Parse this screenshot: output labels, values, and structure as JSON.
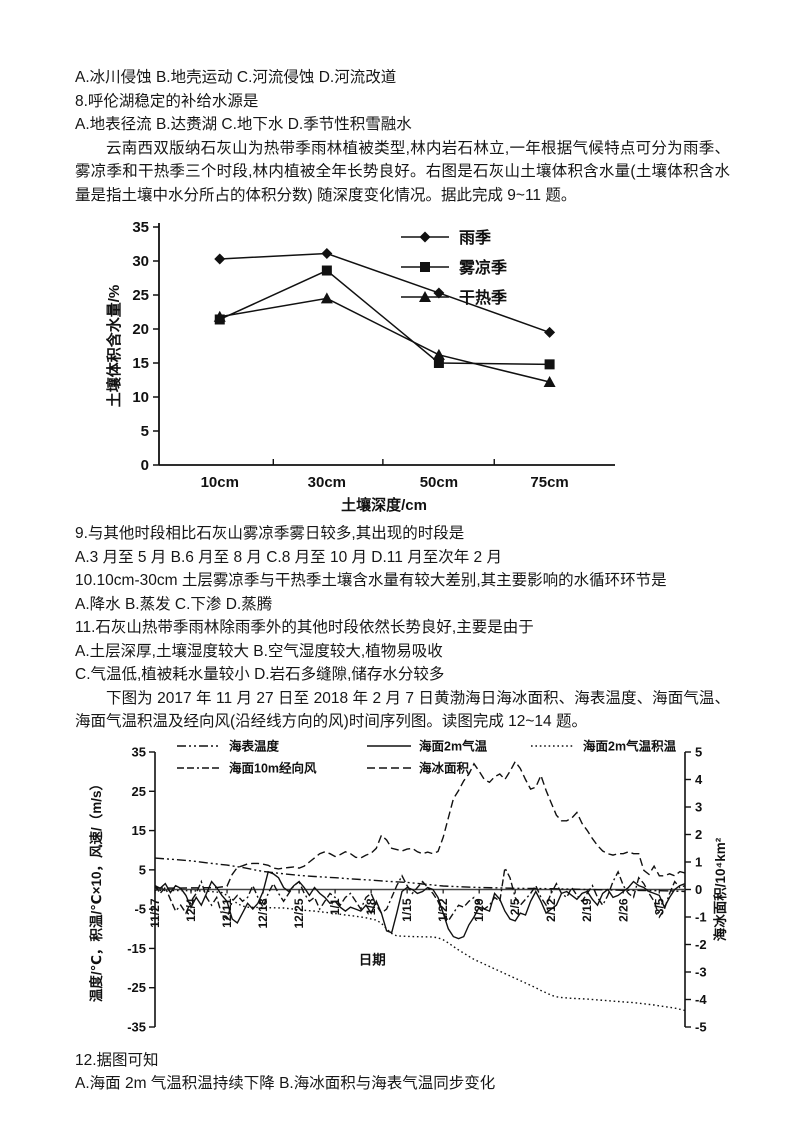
{
  "page": {
    "lines": {
      "q7_options": "A.冰川侵蚀 B.地壳运动 C.河流侵蚀 D.河流改道",
      "q8": "8.呼伦湖稳定的补给水源是",
      "q8_options": "A.地表径流 B.达赉湖 C.地下水 D.季节性积雪融水",
      "intro1": "云南西双版纳石灰山为热带季雨林植被类型,林内岩石林立,一年根据气候特点可分为雨季、雾凉季和干热季三个时段,林内植被全年长势良好。右图是石灰山土壤体积含水量(土壤体积含水量是指土壤中水分所占的体积分数) 随深度变化情况。据此完成 9~11 题。",
      "q9": "9.与其他时段相比石灰山雾凉季雾日较多,其出现的时段是",
      "q9_options": "A.3 月至 5 月 B.6 月至 8 月 C.8 月至 10 月 D.11 月至次年 2 月",
      "q10": "10.10cm-30cm 土层雾凉季与干热季土壤含水量有较大差别,其主要影响的水循环环节是",
      "q10_options": "A.降水 B.蒸发 C.下渗 D.蒸腾",
      "q11": "11.石灰山热带季雨林除雨季外的其他时段依然长势良好,主要是由于",
      "q11_options_ab": "A.土层深厚,土壤湿度较大 B.空气湿度较大,植物易吸收",
      "q11_options_cd": "C.气温低,植被耗水量较小 D.岩石多缝隙,储存水分较多",
      "intro2": "下图为 2017 年 11 月 27 日至 2018 年 2 月 7 日黄渤海日海冰面积、海表温度、海面气温、海面气温积温及经向风(沿经线方向的风)时间序列图。读图完成 12~14 题。",
      "q12": "12.据图可知",
      "q12_options_ab": "A.海面 2m 气温积温持续下降 B.海冰面积与海表气温同步变化"
    }
  },
  "chart_data": [
    {
      "id": "soil-moisture",
      "type": "line",
      "title": "",
      "xlabel": "土壤深度/cm",
      "ylabel": "土壤体积含水量/%",
      "categories": [
        "10cm",
        "30cm",
        "50cm",
        "75cm"
      ],
      "ylim": [
        0,
        35
      ],
      "ytick_step": 5,
      "grid": false,
      "legend_position": "top-right",
      "line_color": "#111111",
      "series": [
        {
          "name": "雨季",
          "marker": "diamond",
          "values": [
            30.3,
            31.1,
            25.3,
            19.5
          ]
        },
        {
          "name": "雾凉季",
          "marker": "square",
          "values": [
            21.4,
            28.6,
            15.0,
            14.8
          ]
        },
        {
          "name": "干热季",
          "marker": "triangle",
          "values": [
            21.8,
            24.5,
            16.2,
            12.2
          ]
        }
      ]
    },
    {
      "id": "sea-ice-timeseries",
      "type": "line",
      "title": "",
      "xlabel": "日期",
      "ylabel_left": "温度/℃，积温/℃×10，风速/（m/s）",
      "ylabel_right": "海冰面积/10⁴km²",
      "ylim_left": [
        -35,
        35
      ],
      "ylim_right": [
        -5,
        5
      ],
      "ytick_step_left": 10,
      "ytick_step_right": 1,
      "right_to_left_scale": 7,
      "x_domain_days": [
        0,
        103
      ],
      "xtick_days": [
        0,
        7,
        14,
        21,
        28,
        35,
        42,
        49,
        56,
        63,
        70,
        77,
        84,
        91,
        98
      ],
      "xtick_labels": [
        "11/27",
        "12/4",
        "12/11",
        "12/18",
        "12/25",
        "1/1",
        "1/8",
        "1/15",
        "1/22",
        "1/29",
        "2/5",
        "2/12",
        "2/19",
        "2/26",
        "3/5"
      ],
      "legend_rows": [
        [
          0,
          1,
          2
        ],
        [
          3,
          4
        ]
      ],
      "line_color": "#111111",
      "series": [
        {
          "name": "海表温度",
          "style": "dash-dot",
          "axis": "left",
          "points": [
            [
              0,
              8
            ],
            [
              4,
              7.6
            ],
            [
              7,
              7.3
            ],
            [
              10,
              6.8
            ],
            [
              14,
              6.2
            ],
            [
              17,
              5.6
            ],
            [
              19,
              5.1
            ],
            [
              21,
              4.6
            ],
            [
              23,
              4.3
            ],
            [
              25,
              4.0
            ],
            [
              28,
              3.6
            ],
            [
              31,
              3.3
            ],
            [
              35,
              3.0
            ],
            [
              38,
              2.7
            ],
            [
              42,
              2.4
            ],
            [
              45,
              2.1
            ],
            [
              49,
              1.8
            ],
            [
              52,
              1.4
            ],
            [
              56,
              0.9
            ],
            [
              59,
              0.7
            ],
            [
              63,
              0.5
            ],
            [
              67,
              0.4
            ],
            [
              70,
              0.3
            ],
            [
              74,
              0.25
            ],
            [
              77,
              0.2
            ],
            [
              81,
              0.1
            ],
            [
              84,
              0.0
            ],
            [
              88,
              -0.1
            ],
            [
              91,
              -0.2
            ],
            [
              95,
              -0.25
            ],
            [
              98,
              -0.3
            ],
            [
              101,
              -0.4
            ],
            [
              103,
              -0.5
            ]
          ]
        },
        {
          "name": "海面2m气温",
          "style": "solid",
          "axis": "left",
          "start_day": 0,
          "step": 1,
          "values": [
            1,
            0.3,
            1.5,
            -0.8,
            1,
            0.3,
            -1.5,
            -4.5,
            -2,
            -4,
            -1,
            2,
            0.5,
            -1.5,
            -3,
            -7.5,
            -8.5,
            -6,
            -3.5,
            -5,
            -3.5,
            -0.5,
            4.5,
            4,
            3,
            0.5,
            -0.5,
            1,
            2,
            0.5,
            -1.5,
            0.5,
            -1,
            -2,
            -3.5,
            -3,
            -4.5,
            -5.5,
            -4.5,
            -5,
            -5.5,
            -4,
            -6,
            -3,
            -6,
            -10.5,
            -11,
            -6,
            -0.5,
            0.5,
            0,
            -1,
            -0.5,
            0.5,
            0,
            -2,
            -6,
            -10,
            -12,
            -12.5,
            -12,
            -9,
            -7,
            -4.5,
            -5,
            -5.5,
            -1,
            -2.5,
            -5.5,
            -7.5,
            -8,
            -6,
            -6.5,
            -3,
            -0.5,
            -3,
            -6,
            -5,
            -4,
            -1,
            -0.5,
            -1.5,
            -2.5,
            -1,
            -0.5,
            -2.5,
            -4,
            -1,
            0,
            -2,
            -1.5,
            -0.5,
            0.5,
            2,
            1,
            0.5,
            -0.5,
            -1,
            -1.5,
            -4.5,
            -2,
            0,
            1,
            1.5
          ]
        },
        {
          "name": "海面2m气温积温",
          "style": "dotted",
          "axis": "left",
          "points": [
            [
              0,
              -0.2
            ],
            [
              6,
              -0.3
            ],
            [
              10,
              -0.4
            ],
            [
              13,
              -0.8
            ],
            [
              14,
              -1.5
            ],
            [
              15,
              -2.5
            ],
            [
              16,
              -3.6
            ],
            [
              17,
              -4.2
            ],
            [
              18,
              -4.5
            ],
            [
              21,
              -4.6
            ],
            [
              25,
              -4.7
            ],
            [
              27,
              -5.0
            ],
            [
              28,
              -5.2
            ],
            [
              31,
              -5.5
            ],
            [
              33,
              -5.8
            ],
            [
              35,
              -6.1
            ],
            [
              37,
              -6.5
            ],
            [
              39,
              -6.8
            ],
            [
              41,
              -7.2
            ],
            [
              43,
              -7.8
            ],
            [
              44,
              -8.6
            ],
            [
              45,
              -10.0
            ],
            [
              46,
              -11.2
            ],
            [
              47,
              -11.8
            ],
            [
              50,
              -12.0
            ],
            [
              54,
              -12.1
            ],
            [
              55,
              -12.3
            ],
            [
              56,
              -12.8
            ],
            [
              57,
              -13.6
            ],
            [
              58,
              -14.5
            ],
            [
              59,
              -15.4
            ],
            [
              60,
              -16.2
            ],
            [
              61,
              -17.0
            ],
            [
              62,
              -17.8
            ],
            [
              63,
              -18.4
            ],
            [
              64,
              -19.0
            ],
            [
              65,
              -19.6
            ],
            [
              66,
              -20.2
            ],
            [
              67,
              -20.8
            ],
            [
              68,
              -21.4
            ],
            [
              69,
              -22.0
            ],
            [
              70,
              -22.6
            ],
            [
              71,
              -23.2
            ],
            [
              72,
              -23.8
            ],
            [
              73,
              -24.4
            ],
            [
              74,
              -25.0
            ],
            [
              75,
              -25.7
            ],
            [
              76,
              -26.3
            ],
            [
              77,
              -26.9
            ],
            [
              78,
              -27.3
            ],
            [
              79,
              -27.5
            ],
            [
              81,
              -27.7
            ],
            [
              84,
              -27.9
            ],
            [
              86,
              -28.1
            ],
            [
              88,
              -28.3
            ],
            [
              91,
              -28.6
            ],
            [
              93,
              -28.8
            ],
            [
              95,
              -29.1
            ],
            [
              97,
              -29.4
            ],
            [
              99,
              -29.8
            ],
            [
              101,
              -30.2
            ],
            [
              103,
              -30.8
            ]
          ]
        },
        {
          "name": "海面10m经向风",
          "style": "dash-dash-dot",
          "axis": "left",
          "start_day": 0,
          "step": 1,
          "values": [
            1,
            -1,
            0.5,
            -2.5,
            -5.5,
            -4,
            -6,
            -3,
            -1,
            2,
            -2,
            -4,
            -2,
            -6.5,
            -7.5,
            -3,
            -1.5,
            -3,
            -2,
            1,
            -2,
            -4.5,
            -1,
            1.5,
            -1,
            -3,
            -1,
            1,
            2,
            -1,
            -3,
            -2,
            -5,
            -3,
            -1,
            -2,
            -4,
            -2,
            -1,
            -3,
            -5,
            -2,
            -1,
            -4,
            -6,
            -5,
            -2,
            1,
            3.5,
            1,
            -1,
            0.5,
            2,
            0.5,
            -1,
            -3,
            -6,
            -8,
            -6,
            -4,
            -4.5,
            -3,
            -2,
            -3.5,
            -5,
            -4,
            -2,
            -3,
            5.5,
            3,
            -2,
            -4,
            -2.5,
            -1,
            1,
            -2,
            -4,
            -1,
            1.5,
            -1,
            -2,
            0.5,
            -1.5,
            -3,
            -1,
            1,
            -2,
            -4,
            -1.5,
            2,
            4.5,
            1,
            -1,
            -2,
            3,
            1.5,
            -1,
            -3,
            -7,
            -5,
            -1,
            2,
            0.5,
            1
          ]
        },
        {
          "name": "海冰面积",
          "style": "dash",
          "axis": "right",
          "unit": "10⁴km²",
          "points": [
            [
              0,
              0.05
            ],
            [
              4,
              0.05
            ],
            [
              8,
              0.06
            ],
            [
              12,
              0.07
            ],
            [
              14,
              0.12
            ],
            [
              15,
              0.55
            ],
            [
              16,
              0.8
            ],
            [
              17,
              0.86
            ],
            [
              18,
              0.93
            ],
            [
              19,
              0.95
            ],
            [
              20,
              0.95
            ],
            [
              21,
              0.92
            ],
            [
              22,
              0.88
            ],
            [
              23,
              0.78
            ],
            [
              24,
              0.75
            ],
            [
              25,
              0.78
            ],
            [
              26,
              0.8
            ],
            [
              27,
              0.82
            ],
            [
              28,
              0.78
            ],
            [
              29,
              0.85
            ],
            [
              30,
              1.0
            ],
            [
              31,
              1.15
            ],
            [
              32,
              1.3
            ],
            [
              33,
              1.37
            ],
            [
              34,
              1.3
            ],
            [
              35,
              1.2
            ],
            [
              36,
              1.27
            ],
            [
              37,
              1.37
            ],
            [
              38,
              1.3
            ],
            [
              39,
              1.17
            ],
            [
              40,
              1.15
            ],
            [
              41,
              1.25
            ],
            [
              42,
              1.32
            ],
            [
              43,
              1.5
            ],
            [
              44,
              1.97
            ],
            [
              45,
              1.8
            ],
            [
              46,
              1.5
            ],
            [
              47,
              1.45
            ],
            [
              48,
              1.4
            ],
            [
              49,
              1.47
            ],
            [
              50,
              1.5
            ],
            [
              51,
              1.37
            ],
            [
              52,
              1.3
            ],
            [
              53,
              1.36
            ],
            [
              54,
              1.3
            ],
            [
              55,
              1.38
            ],
            [
              56,
              1.9
            ],
            [
              57,
              2.6
            ],
            [
              58,
              3.3
            ],
            [
              59,
              3.6
            ],
            [
              60,
              3.95
            ],
            [
              61,
              4.2
            ],
            [
              62,
              4.57
            ],
            [
              63,
              4.3
            ],
            [
              64,
              4.0
            ],
            [
              65,
              3.9
            ],
            [
              66,
              4.1
            ],
            [
              67,
              4.2
            ],
            [
              68,
              4.0
            ],
            [
              69,
              4.3
            ],
            [
              70,
              4.65
            ],
            [
              71,
              4.4
            ],
            [
              72,
              4.0
            ],
            [
              73,
              3.65
            ],
            [
              74,
              3.72
            ],
            [
              75,
              4.15
            ],
            [
              76,
              3.6
            ],
            [
              77,
              3.15
            ],
            [
              78,
              2.7
            ],
            [
              79,
              2.5
            ],
            [
              80,
              2.5
            ],
            [
              81,
              2.6
            ],
            [
              82,
              2.8
            ],
            [
              83,
              2.4
            ],
            [
              84,
              2.15
            ],
            [
              85,
              1.85
            ],
            [
              86,
              1.6
            ],
            [
              87,
              1.4
            ],
            [
              88,
              1.3
            ],
            [
              89,
              1.25
            ],
            [
              90,
              1.3
            ],
            [
              91,
              1.3
            ],
            [
              92,
              1.37
            ],
            [
              93,
              1.3
            ],
            [
              94,
              1.3
            ],
            [
              95,
              0.7
            ],
            [
              96,
              0.55
            ],
            [
              97,
              0.85
            ],
            [
              98,
              0.5
            ],
            [
              99,
              0.5
            ],
            [
              100,
              0.57
            ],
            [
              101,
              0.5
            ],
            [
              102,
              0.65
            ],
            [
              103,
              0.6
            ]
          ]
        }
      ]
    }
  ]
}
